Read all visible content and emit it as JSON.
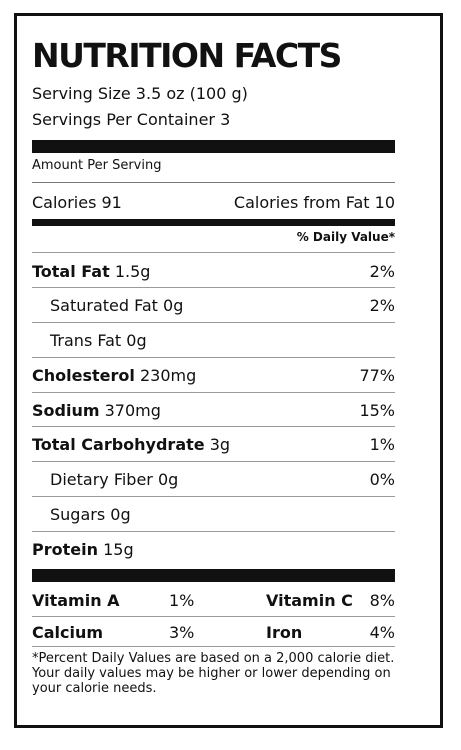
{
  "title": "NUTRITION FACTS",
  "serving_size": "Serving Size 3.5 oz (100 g)",
  "servings_per_container": "Servings Per Container 3",
  "amount_per_serving": "Amount Per Serving",
  "calories": "Calories 91",
  "calories_from_fat": "Calories from Fat 10",
  "daily_value_header": "% Daily Value*",
  "nutrients": [
    {
      "name": "Total Fat",
      "amount": "1.5g",
      "dv": "2%",
      "bold": true
    },
    {
      "name": "Saturated Fat",
      "amount": "0g",
      "dv": "2%",
      "bold": false
    },
    {
      "name": "Trans Fat",
      "amount": "0g",
      "dv": "",
      "bold": false
    },
    {
      "name": "Cholesterol",
      "amount": "230mg",
      "dv": "77%",
      "bold": true
    },
    {
      "name": "Sodium",
      "amount": "370mg",
      "dv": "15%",
      "bold": true
    },
    {
      "name": "Total Carbohydrate",
      "amount": "3g",
      "dv": "1%",
      "bold": true
    },
    {
      "name": "Dietary Fiber",
      "amount": "0g",
      "dv": "0%",
      "bold": false
    },
    {
      "name": "Sugars",
      "amount": "0g",
      "dv": "",
      "bold": false
    },
    {
      "name": "Protein",
      "amount": "15g",
      "dv": "",
      "bold": true
    }
  ],
  "vitamins": [
    {
      "name": "Vitamin A",
      "dv": "1%",
      "name2": "Vitamin C",
      "dv2": "8%"
    },
    {
      "name": "Calcium",
      "dv": "3%",
      "name2": "Iron",
      "dv2": "4%"
    }
  ],
  "footnote": "*Percent Daily Values are based on a 2,000 calorie diet. Your daily values may be higher or lower depending on your calorie needs."
}
